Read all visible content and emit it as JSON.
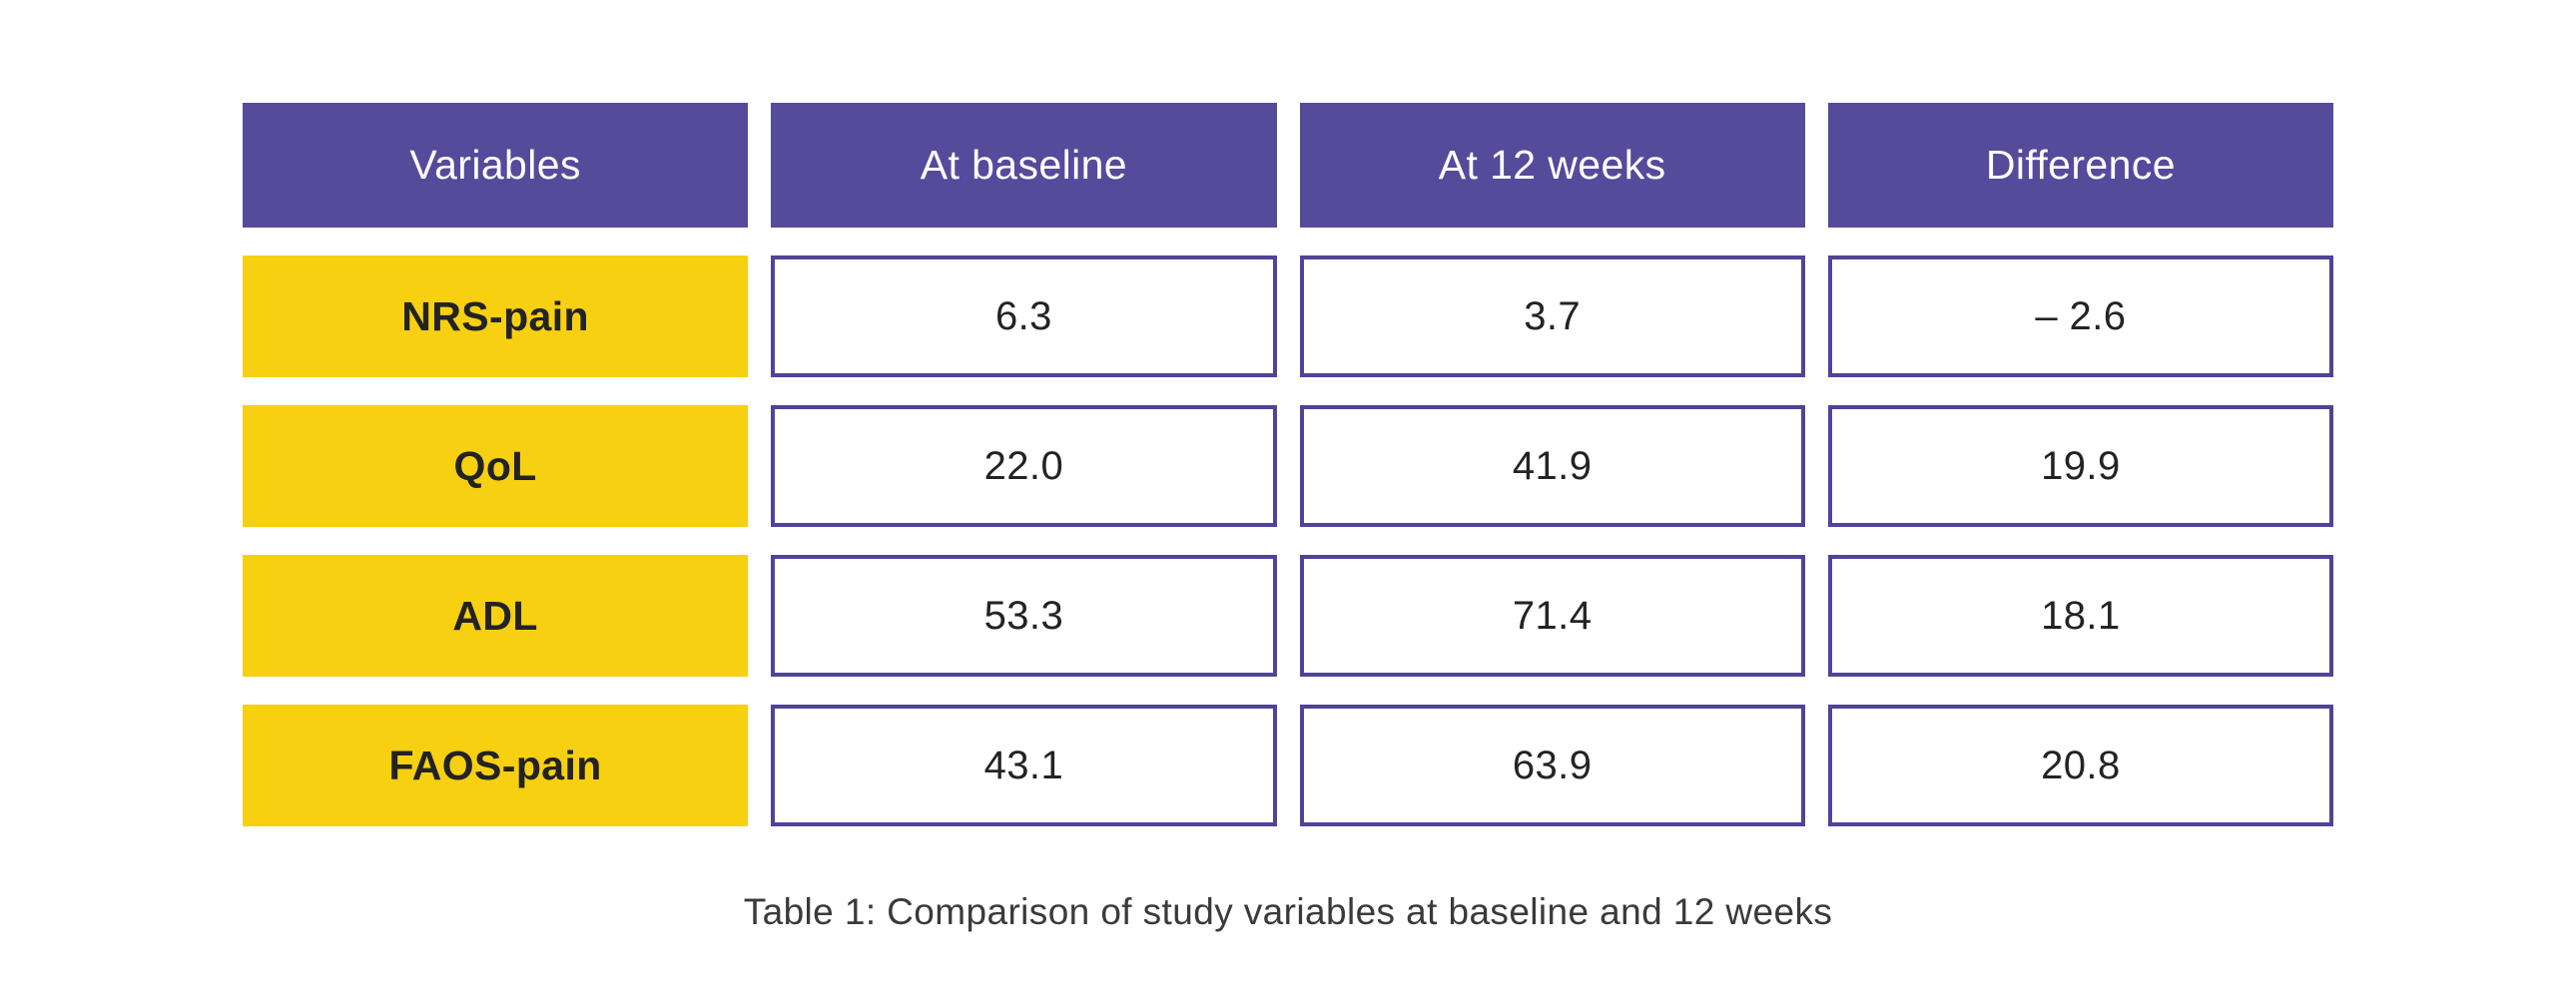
{
  "chart_data": {
    "type": "table",
    "title": "Table 1: Comparison of study variables at baseline and 12 weeks",
    "columns": [
      "Variables",
      "At baseline",
      "At 12 weeks",
      "Difference"
    ],
    "rows": [
      [
        "NRS-pain",
        6.3,
        3.7,
        -2.6
      ],
      [
        "QoL",
        22.0,
        41.9,
        19.9
      ],
      [
        "ADL",
        53.3,
        71.4,
        18.1
      ],
      [
        "FAOS-pain",
        43.1,
        63.9,
        20.8
      ]
    ]
  },
  "header": {
    "cells": [
      "Variables",
      "At baseline",
      "At 12 weeks",
      "Difference"
    ]
  },
  "rows": [
    {
      "label": "NRS-pain",
      "values": [
        "6.3",
        "3.7",
        "– 2.6"
      ]
    },
    {
      "label": "QoL",
      "values": [
        "22.0",
        "41.9",
        "19.9"
      ]
    },
    {
      "label": "ADL",
      "values": [
        "53.3",
        "71.4",
        "18.1"
      ]
    },
    {
      "label": "FAOS-pain",
      "values": [
        "43.1",
        "63.9",
        "20.8"
      ]
    }
  ],
  "caption": {
    "text": "Table 1: Comparison of study variables at baseline and 12 weeks"
  },
  "colors": {
    "header_bg": "#564a9b",
    "header_text": "#ffffff",
    "label_bg": "#f7d011",
    "cell_border": "#4e4499",
    "cell_text": "#232323",
    "caption_text": "#3a3a3a"
  }
}
